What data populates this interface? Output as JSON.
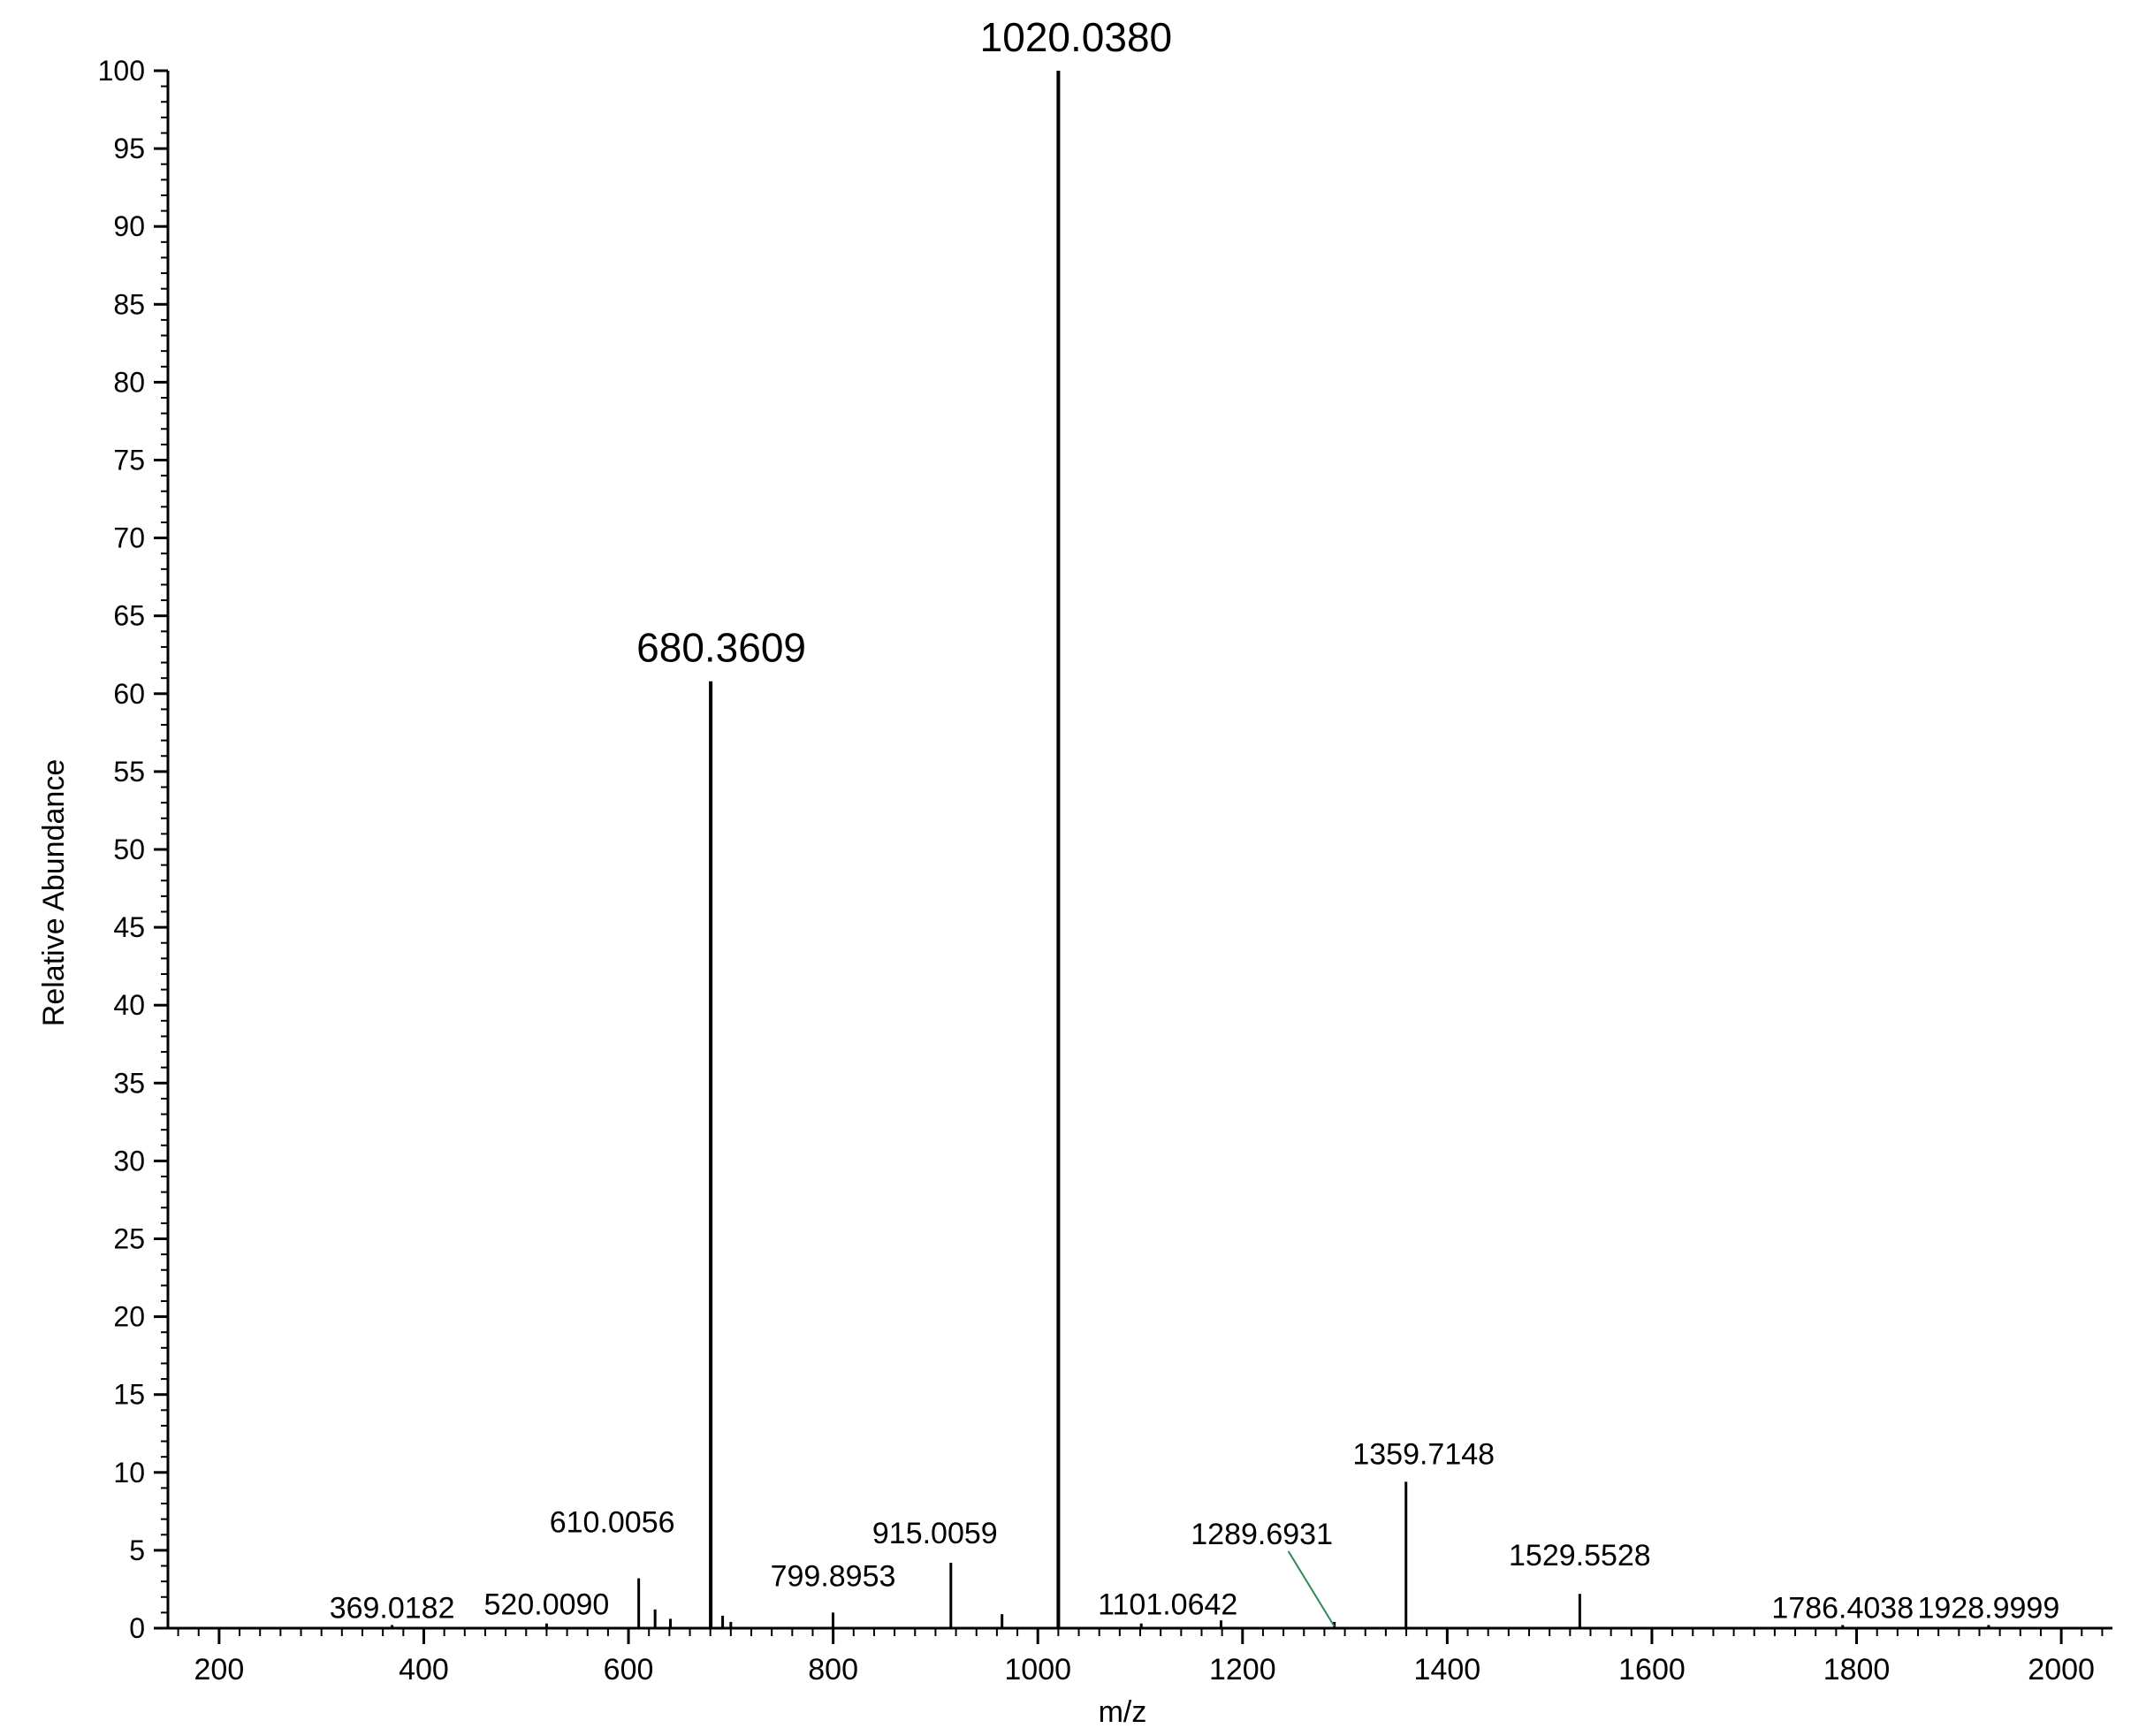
{
  "chart_data": {
    "type": "bar",
    "xlabel": "m/z",
    "ylabel": "Relative Abundance",
    "xlim": [
      150,
      2050
    ],
    "ylim": [
      0,
      100
    ],
    "xticks": [
      "200",
      "400",
      "600",
      "800",
      "1000",
      "1200",
      "1400",
      "1600",
      "1800",
      "2000"
    ],
    "yticks": [
      "0",
      "5",
      "10",
      "15",
      "20",
      "25",
      "30",
      "35",
      "40",
      "45",
      "50",
      "55",
      "60",
      "65",
      "70",
      "75",
      "80",
      "85",
      "90",
      "95",
      "100"
    ],
    "peaks": [
      {
        "mz": 369.0182,
        "intensity": 0.2,
        "label": "369.0182"
      },
      {
        "mz": 520.009,
        "intensity": 0.3,
        "label": "520.0090"
      },
      {
        "mz": 610.0056,
        "intensity": 3.2,
        "label": "610.0056"
      },
      {
        "mz": 626.0,
        "intensity": 1.2,
        "label": ""
      },
      {
        "mz": 641.0,
        "intensity": 0.6,
        "label": ""
      },
      {
        "mz": 680.3609,
        "intensity": 60.8,
        "label": "680.3609"
      },
      {
        "mz": 692.0,
        "intensity": 0.8,
        "label": ""
      },
      {
        "mz": 700.0,
        "intensity": 0.4,
        "label": ""
      },
      {
        "mz": 799.8953,
        "intensity": 1.0,
        "label": "799.8953"
      },
      {
        "mz": 915.0059,
        "intensity": 4.2,
        "label": "915.0059"
      },
      {
        "mz": 965.0,
        "intensity": 0.9,
        "label": ""
      },
      {
        "mz": 1020.038,
        "intensity": 100,
        "label": "1020.0380"
      },
      {
        "mz": 1101.0642,
        "intensity": 0.3,
        "label": "1101.0642"
      },
      {
        "mz": 1179.0,
        "intensity": 0.5,
        "label": ""
      },
      {
        "mz": 1289.6931,
        "intensity": 0.4,
        "label": "1289.6931"
      },
      {
        "mz": 1359.7148,
        "intensity": 9.4,
        "label": "1359.7148"
      },
      {
        "mz": 1529.5528,
        "intensity": 2.2,
        "label": "1529.5528"
      },
      {
        "mz": 1786.4038,
        "intensity": 0.2,
        "label": "1786.4038"
      },
      {
        "mz": 1928.9999,
        "intensity": 0.2,
        "label": "1928.9999"
      }
    ]
  }
}
